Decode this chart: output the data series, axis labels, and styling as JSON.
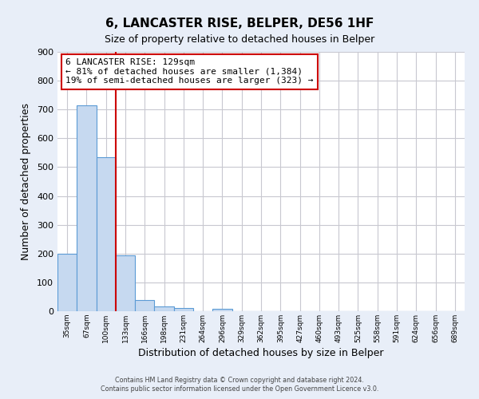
{
  "title": "6, LANCASTER RISE, BELPER, DE56 1HF",
  "subtitle": "Size of property relative to detached houses in Belper",
  "xlabel": "Distribution of detached houses by size in Belper",
  "ylabel": "Number of detached properties",
  "bar_labels": [
    "35sqm",
    "67sqm",
    "100sqm",
    "133sqm",
    "166sqm",
    "198sqm",
    "231sqm",
    "264sqm",
    "296sqm",
    "329sqm",
    "362sqm",
    "395sqm",
    "427sqm",
    "460sqm",
    "493sqm",
    "525sqm",
    "558sqm",
    "591sqm",
    "624sqm",
    "656sqm",
    "689sqm"
  ],
  "bar_values": [
    200,
    715,
    535,
    193,
    40,
    16,
    12,
    0,
    8,
    0,
    0,
    0,
    0,
    0,
    0,
    0,
    0,
    0,
    0,
    0,
    0
  ],
  "bar_color": "#c6d9f0",
  "bar_edge_color": "#5b9bd5",
  "property_line_x": 3,
  "property_line_color": "#cc0000",
  "ylim": [
    0,
    900
  ],
  "yticks": [
    0,
    100,
    200,
    300,
    400,
    500,
    600,
    700,
    800,
    900
  ],
  "annotation_title": "6 LANCASTER RISE: 129sqm",
  "annotation_line1": "← 81% of detached houses are smaller (1,384)",
  "annotation_line2": "19% of semi-detached houses are larger (323) →",
  "annotation_box_color": "#ffffff",
  "annotation_box_edge": "#cc0000",
  "footer_line1": "Contains HM Land Registry data © Crown copyright and database right 2024.",
  "footer_line2": "Contains public sector information licensed under the Open Government Licence v3.0.",
  "background_color": "#e8eef8",
  "plot_background": "#ffffff",
  "grid_color": "#c8c8d0",
  "figsize": [
    6.0,
    5.0
  ],
  "dpi": 100
}
